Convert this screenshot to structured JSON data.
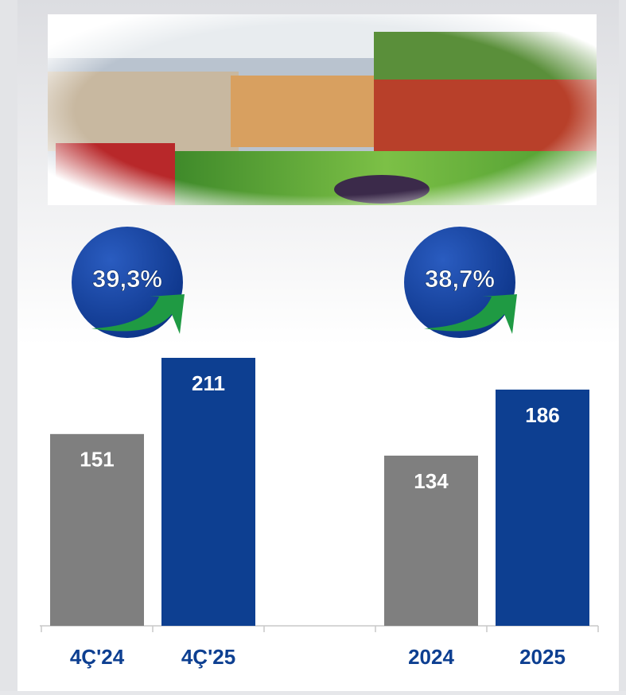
{
  "chart_data": {
    "type": "bar",
    "categories": [
      "4Ç'24",
      "4Ç'25",
      null,
      "2024",
      "2025"
    ],
    "values": [
      151,
      211,
      null,
      134,
      186
    ],
    "colors": [
      "#7f7f7f",
      "#0d3f91",
      null,
      "#7f7f7f",
      "#0d3f91"
    ],
    "annotations": [
      {
        "text": "39,3%"
      },
      {
        "text": "38,7%"
      }
    ]
  }
}
